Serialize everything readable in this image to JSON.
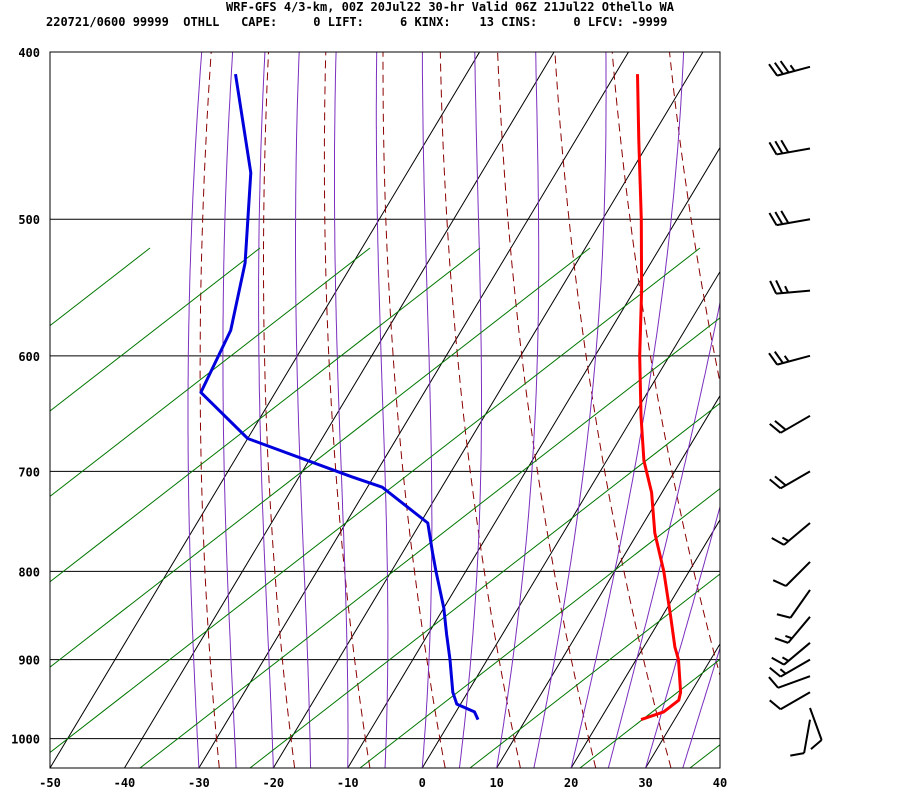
{
  "header": {
    "title": "WRF-GFS 4/3-km, 00Z 20Jul22 30-hr Valid 06Z 21Jul22 Othello WA",
    "indices": "220721/0600 99999  OTHLL   CAPE:     0 LIFT:     6 KINX:    13 CINS:     0 LFCV: -9999"
  },
  "chart_data": {
    "type": "skew-t",
    "title": "WRF-GFS 4/3-km, 00Z 20Jul22 30-hr Valid 06Z 21Jul22 Othello WA",
    "x_unit": "temperature (C)",
    "y_unit": "pressure (hPa)",
    "xlim": [
      -50,
      40
    ],
    "ylim": [
      1040,
      400
    ],
    "x_ticks": [
      "-50",
      "-40",
      "-30",
      "-20",
      "-10",
      "0",
      "10",
      "20",
      "30",
      "40"
    ],
    "y_ticks": [
      "400",
      "500",
      "600",
      "700",
      "800",
      "900",
      "1000"
    ],
    "colors": {
      "temperature": "#ff0000",
      "dewpoint": "#0000dd",
      "dry_adiabats": "#8b0000",
      "moist_adiabats": "#7b2fbe",
      "mixing_ratio": "#007700",
      "grid": "#000000"
    },
    "series": [
      {
        "name": "temperature",
        "points": [
          {
            "p": 975,
            "t": 25.5
          },
          {
            "p": 965,
            "t": 27.9
          },
          {
            "p": 950,
            "t": 29.0
          },
          {
            "p": 940,
            "t": 28.6
          },
          {
            "p": 900,
            "t": 25.7
          },
          {
            "p": 885,
            "t": 24.2
          },
          {
            "p": 850,
            "t": 21.2
          },
          {
            "p": 800,
            "t": 16.6
          },
          {
            "p": 760,
            "t": 12.3
          },
          {
            "p": 720,
            "t": 8.6
          },
          {
            "p": 690,
            "t": 5.0
          },
          {
            "p": 650,
            "t": 1.0
          },
          {
            "p": 600,
            "t": -4.0
          },
          {
            "p": 550,
            "t": -9.0
          },
          {
            "p": 500,
            "t": -14.8
          },
          {
            "p": 450,
            "t": -21.5
          },
          {
            "p": 412,
            "t": -27.0
          }
        ]
      },
      {
        "name": "dewpoint",
        "points": [
          {
            "p": 975,
            "t": 3.6
          },
          {
            "p": 965,
            "t": 2.5
          },
          {
            "p": 955,
            "t": -0.5
          },
          {
            "p": 940,
            "t": -2.0
          },
          {
            "p": 900,
            "t": -5.0
          },
          {
            "p": 870,
            "t": -7.5
          },
          {
            "p": 840,
            "t": -10.0
          },
          {
            "p": 800,
            "t": -14.0
          },
          {
            "p": 780,
            "t": -16.0
          },
          {
            "p": 750,
            "t": -19.0
          },
          {
            "p": 715,
            "t": -28.0
          },
          {
            "p": 705,
            "t": -33.0
          },
          {
            "p": 670,
            "t": -50.0
          },
          {
            "p": 630,
            "t": -60.0
          },
          {
            "p": 580,
            "t": -61.0
          },
          {
            "p": 530,
            "t": -64.5
          },
          {
            "p": 470,
            "t": -71.0
          },
          {
            "p": 412,
            "t": -81.0
          }
        ]
      }
    ],
    "wind_barbs": [
      {
        "p": 408,
        "dir": 255,
        "speed": 35
      },
      {
        "p": 455,
        "dir": 260,
        "speed": 30
      },
      {
        "p": 500,
        "dir": 260,
        "speed": 30
      },
      {
        "p": 550,
        "dir": 265,
        "speed": 25
      },
      {
        "p": 600,
        "dir": 255,
        "speed": 25
      },
      {
        "p": 650,
        "dir": 240,
        "speed": 20
      },
      {
        "p": 700,
        "dir": 240,
        "speed": 20
      },
      {
        "p": 750,
        "dir": 230,
        "speed": 15
      },
      {
        "p": 790,
        "dir": 225,
        "speed": 10
      },
      {
        "p": 820,
        "dir": 215,
        "speed": 10
      },
      {
        "p": 850,
        "dir": 220,
        "speed": 15
      },
      {
        "p": 880,
        "dir": 230,
        "speed": 15
      },
      {
        "p": 900,
        "dir": 240,
        "speed": 15
      },
      {
        "p": 920,
        "dir": 250,
        "speed": 10
      },
      {
        "p": 940,
        "dir": 240,
        "speed": 10
      },
      {
        "p": 960,
        "dir": 160,
        "speed": 10
      },
      {
        "p": 975,
        "dir": 190,
        "speed": 10
      }
    ],
    "grid": true
  }
}
